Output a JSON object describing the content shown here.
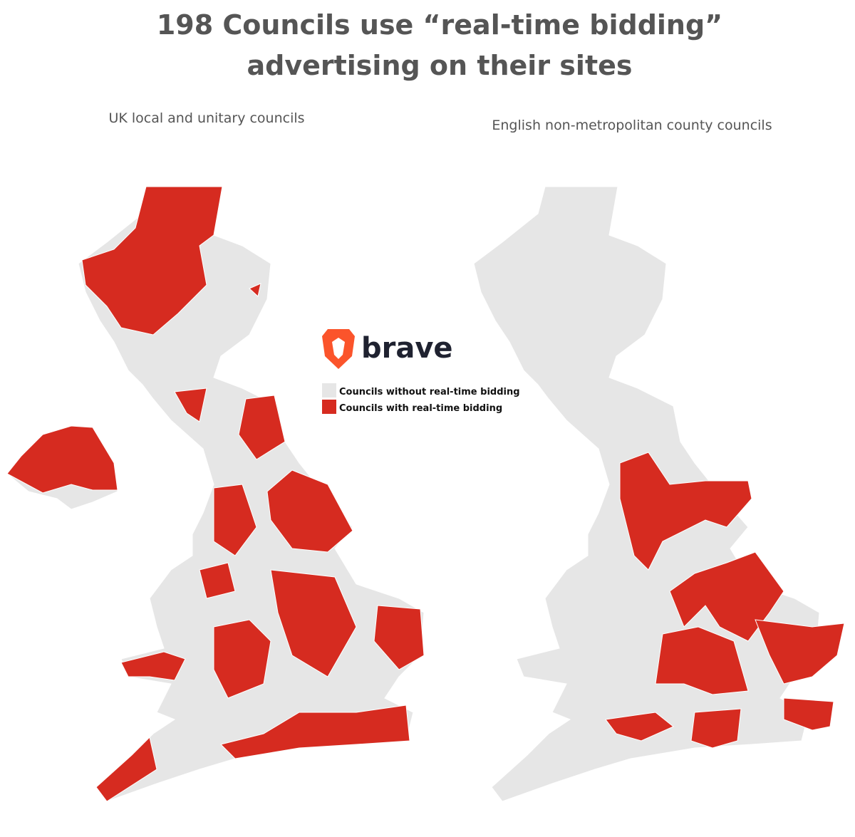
{
  "title": [
    "198 Councils use “real-time bidding”",
    "advertising on their sites"
  ],
  "maps": [
    {
      "subtitle": "UK local and unitary councils"
    },
    {
      "subtitle": "English non-metropolitan county councils"
    }
  ],
  "logo": {
    "text": "brave"
  },
  "legend": [
    {
      "label": "Councils without real-time bidding",
      "color": "#e6e6e6"
    },
    {
      "label": "Councils with real-time bidding",
      "color": "#d62b20"
    }
  ]
}
